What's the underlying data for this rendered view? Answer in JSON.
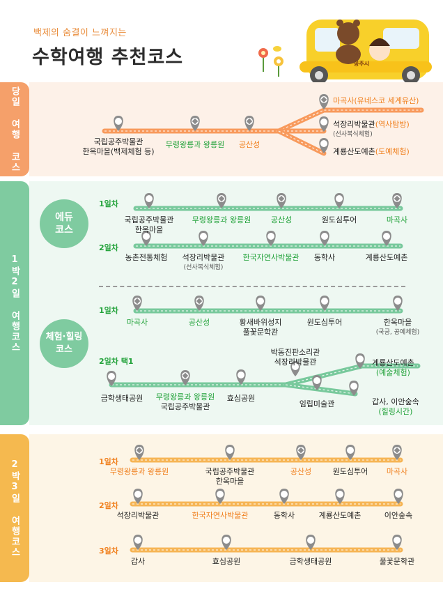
{
  "header": {
    "subtitle": "백제의 숨결이 느껴지는",
    "title": "수학여행 추천코스",
    "bus_sign": "공주시"
  },
  "colors": {
    "orange": "#f5a06a",
    "orange_line": "#f89a5c",
    "green": "#7fcba0",
    "green_line": "#78c99c",
    "yellow": "#f5b94f",
    "yellow_line": "#f6b555",
    "pin": "#8c8c8c",
    "green_text": "#22a23a",
    "orange_text": "#f07f1c"
  },
  "sections": {
    "day": {
      "side": "당일 여행 코스"
    },
    "one": {
      "side": "1박2일 여행코스",
      "edu": "에듀\n코스",
      "heal": "체험·힐링\n코스"
    },
    "two": {
      "side": "2박3일 여행코스"
    }
  },
  "daytrip": {
    "stops": [
      {
        "name": "국립공주박물관\n한옥마을(백제체험 등)",
        "icon": "pin-icon"
      },
      {
        "name": "무령왕릉과 왕릉원",
        "icon": "heritage-pin-icon"
      },
      {
        "name": "공산성",
        "icon": "heritage-pin-icon"
      }
    ],
    "branches": [
      {
        "name": "마곡사",
        "note": "(유네스코 세계유산)",
        "icon": "heritage-pin-icon"
      },
      {
        "name": "석장리박물관",
        "note": "(역사탐방)",
        "sub": "(선사복식체험)",
        "icon": "pin-icon"
      },
      {
        "name": "계룡산도예촌",
        "note": "(도예체험)",
        "icon": "pin-icon"
      }
    ]
  },
  "edu": {
    "day1": {
      "label": "1일차",
      "stops": [
        {
          "name": "국립공주박물관\n한옥마을",
          "icon": "pin-icon"
        },
        {
          "name": "무령왕릉과 왕릉원",
          "icon": "heritage-pin-icon"
        },
        {
          "name": "공산성",
          "icon": "heritage-pin-icon"
        },
        {
          "name": "원도심투어",
          "icon": "pin-icon"
        },
        {
          "name": "마곡사",
          "icon": "heritage-pin-icon"
        }
      ]
    },
    "day2": {
      "label": "2일차",
      "stops": [
        {
          "name": "농촌전통체험",
          "icon": "pin-icon"
        },
        {
          "name": "석장리박물관",
          "sub": "(선사복식체험)",
          "icon": "pin-icon"
        },
        {
          "name": "한국자연사박물관",
          "icon": "pin-icon"
        },
        {
          "name": "동학사",
          "icon": "pin-icon"
        },
        {
          "name": "계룡산도예촌",
          "icon": "pin-icon"
        }
      ]
    }
  },
  "heal": {
    "day1": {
      "label": "1일차",
      "stops": [
        {
          "name": "마곡사",
          "icon": "heritage-pin-icon"
        },
        {
          "name": "공산성",
          "icon": "heritage-pin-icon"
        },
        {
          "name": "황새바위성지\n풀꽃문학관",
          "icon": "pin-icon"
        },
        {
          "name": "원도심투어",
          "icon": "pin-icon"
        },
        {
          "name": "한옥마을",
          "sub": "(국궁, 공예체험)",
          "icon": "pin-icon"
        }
      ]
    },
    "day2": {
      "label": "2일차 택1",
      "stops": [
        {
          "name": "금학생태공원",
          "icon": "pin-icon"
        },
        {
          "name": "무령왕릉과 왕릉원",
          "name2": "국립공주박물관",
          "icon": "heritage-pin-icon"
        },
        {
          "name": "효심공원",
          "icon": "pin-icon"
        }
      ],
      "branches": [
        {
          "name": "박동진판소리관\n석장리박물관",
          "icon": "pin-icon"
        },
        {
          "name": "계룡산도예촌",
          "note": "(예술체험)",
          "icon": "pin-icon"
        },
        {
          "name": "임립미술관",
          "icon": "pin-icon"
        },
        {
          "name": "갑사, 이안숲속",
          "note": "(힐링시간)",
          "icon": "pin-icon"
        }
      ]
    }
  },
  "two": {
    "day1": {
      "label": "1일차",
      "stops": [
        {
          "name": "무령왕릉과 왕릉원",
          "icon": "heritage-pin-icon"
        },
        {
          "name": "국립공주박물관\n한옥마을",
          "icon": "pin-icon"
        },
        {
          "name": "공산성",
          "icon": "heritage-pin-icon"
        },
        {
          "name": "원도심투어",
          "icon": "pin-icon"
        },
        {
          "name": "마곡사",
          "icon": "heritage-pin-icon"
        }
      ]
    },
    "day2": {
      "label": "2일차",
      "stops": [
        {
          "name": "석장리박물관",
          "icon": "pin-icon"
        },
        {
          "name": "한국자연사박물관",
          "icon": "pin-icon"
        },
        {
          "name": "동학사",
          "icon": "pin-icon"
        },
        {
          "name": "계룡산도예촌",
          "icon": "pin-icon"
        },
        {
          "name": "이안숲속",
          "icon": "pin-icon"
        }
      ]
    },
    "day3": {
      "label": "3일차",
      "stops": [
        {
          "name": "갑사",
          "icon": "pin-icon"
        },
        {
          "name": "효심공원",
          "icon": "pin-icon"
        },
        {
          "name": "금학생태공원",
          "icon": "pin-icon"
        },
        {
          "name": "풀꽃문학관",
          "icon": "pin-icon"
        }
      ]
    }
  }
}
